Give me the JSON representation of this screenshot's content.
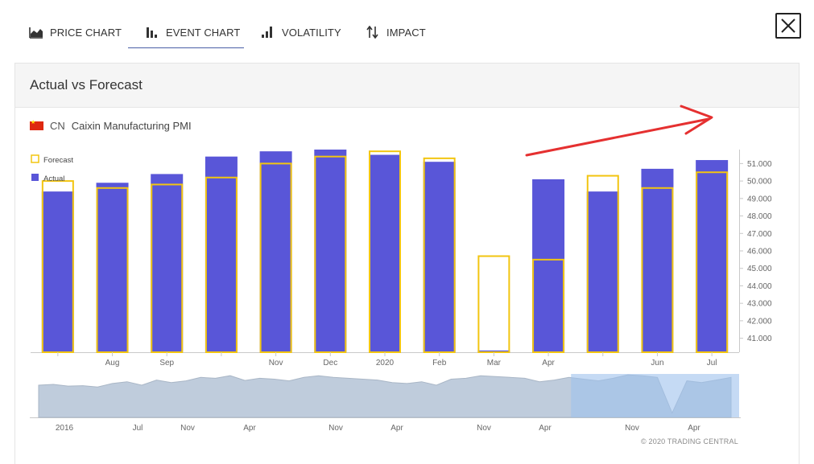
{
  "tabs": [
    {
      "label": "PRICE CHART",
      "icon": "area-chart-icon"
    },
    {
      "label": "EVENT CHART",
      "icon": "bar-chart-icon",
      "active": true
    },
    {
      "label": "VOLATILITY",
      "icon": "volatility-icon"
    },
    {
      "label": "IMPACT",
      "icon": "up-down-arrows-icon"
    }
  ],
  "close_icon": "close-icon",
  "panel": {
    "title": "Actual vs Forecast",
    "indicator_country": "CN",
    "indicator_name": "Caixin Manufacturing PMI"
  },
  "colors": {
    "actual": "#5956d8",
    "forecast": "#f2c511",
    "navigator_fill": "#bfccdc",
    "navigator_selected": "#9fc2ec",
    "annotation_arrow": "#e53030"
  },
  "chart_data": {
    "type": "bar",
    "legend": [
      "Forecast",
      "Actual"
    ],
    "categories": [
      "",
      "Aug",
      "Sep",
      "",
      "Nov",
      "Dec",
      "2020",
      "Feb",
      "Mar",
      "Apr",
      "",
      "Jun",
      "Jul"
    ],
    "series": [
      {
        "name": "Actual",
        "values": [
          49.4,
          49.9,
          50.4,
          51.4,
          51.7,
          51.8,
          51.5,
          51.1,
          40.3,
          50.1,
          49.4,
          50.7,
          51.2
        ]
      },
      {
        "name": "Forecast",
        "values": [
          50.0,
          49.6,
          49.8,
          50.2,
          51.0,
          51.4,
          51.7,
          51.3,
          45.7,
          45.5,
          50.3,
          49.6,
          50.5
        ]
      }
    ],
    "y_ticks": [
      "41.000",
      "42.000",
      "43.000",
      "44.000",
      "45.000",
      "46.000",
      "47.000",
      "48.000",
      "49.000",
      "50.000",
      "51.000"
    ],
    "ylim": [
      40.2,
      51.8
    ],
    "y_axis_side": "right",
    "navigator": {
      "x_labels": [
        "2016",
        "Jul",
        "Nov",
        "Apr",
        "Nov",
        "Apr",
        "Nov",
        "Apr",
        "Nov",
        "Apr"
      ],
      "selection": [
        0.76,
        1.0
      ]
    },
    "credits": "© 2020 TRADING CENTRAL"
  }
}
